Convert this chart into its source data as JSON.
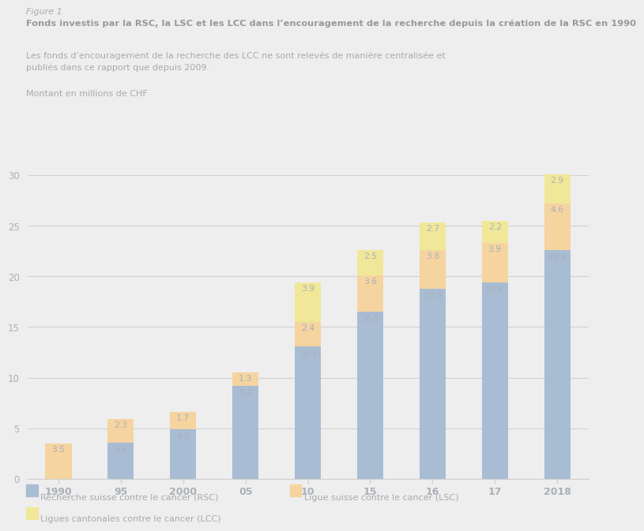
{
  "categories": [
    "1990",
    "95",
    "2000",
    "05",
    "10",
    "15",
    "16",
    "17",
    "2018"
  ],
  "rsc": [
    0,
    3.6,
    4.9,
    9.2,
    13.1,
    16.5,
    18.8,
    19.4,
    22.6
  ],
  "lsc": [
    3.5,
    2.3,
    1.7,
    1.3,
    2.4,
    3.6,
    3.8,
    3.9,
    4.6
  ],
  "lcc": [
    0,
    0,
    0,
    0,
    3.9,
    2.5,
    2.7,
    2.2,
    2.9
  ],
  "rsc_color": "#a8bcd4",
  "lsc_color": "#f5d4a0",
  "lcc_color": "#f0e898",
  "bg_color": "#eeeeee",
  "grid_color": "#d0d0d0",
  "text_color": "#aaaaaa",
  "bold_text_color": "#999999",
  "label_color": "#aab0b8",
  "figure1_label": "Figure 1",
  "title": "Fonds investis par la RSC, la LSC et les LCC dans l’encouragement de la recherche depuis la création de la RSC en 1990",
  "subtitle_line1": "Les fonds d’encouragement de la recherche des LCC ne sont relevés de manière centralisée et",
  "subtitle_line2": "publiés dans ce rapport que depuis 2009.",
  "ylabel": "Montant en millions de CHF",
  "ylim": [
    0,
    32
  ],
  "yticks": [
    0,
    5,
    10,
    15,
    20,
    25,
    30
  ],
  "legend_rsc": "Recherche suisse contre le cancer (RSC)",
  "legend_lsc": "Ligue suisse contre le cancer (LSC)",
  "legend_lcc": "Ligues cantonales contre le cancer (LCC)"
}
